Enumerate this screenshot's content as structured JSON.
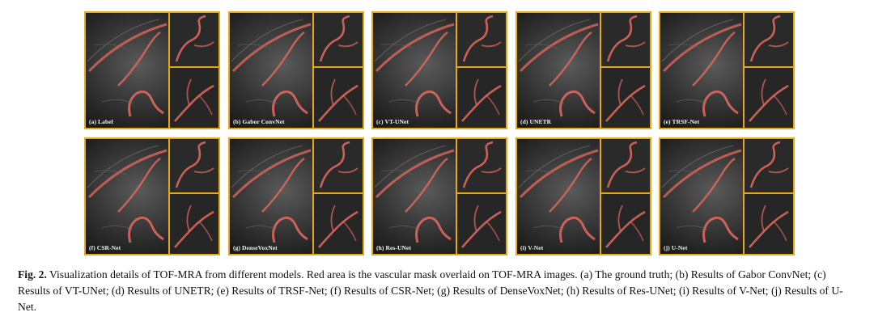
{
  "figure": {
    "panels": [
      {
        "label": "(a) Label"
      },
      {
        "label": "(b) Gabor ConvNet"
      },
      {
        "label": "(c) VT-UNet"
      },
      {
        "label": "(d) UNETR"
      },
      {
        "label": "(e) TRSF-Net"
      },
      {
        "label": "(f) CSR-Net"
      },
      {
        "label": "(g) DenseVoxNet"
      },
      {
        "label": "(h) Res-UNet"
      },
      {
        "label": "(i) V-Net"
      },
      {
        "label": "(j) U-Net"
      }
    ],
    "colors": {
      "frame": "#e6a817",
      "vessel": "#e86a5e",
      "background": "#1a1a1a"
    }
  },
  "caption": {
    "fig_label": "Fig. 2.",
    "text": "Visualization details of TOF-MRA from different models. Red area is the vascular mask overlaid on TOF-MRA images. (a) The ground truth; (b) Results of Gabor ConvNet; (c) Results of VT-UNet; (d) Results of UNETR; (e) Results of TRSF-Net; (f) Results of CSR-Net; (g) Results of DenseVoxNet; (h) Results of Res-UNet; (i) Results of V-Net; (j) Results of U-Net."
  }
}
